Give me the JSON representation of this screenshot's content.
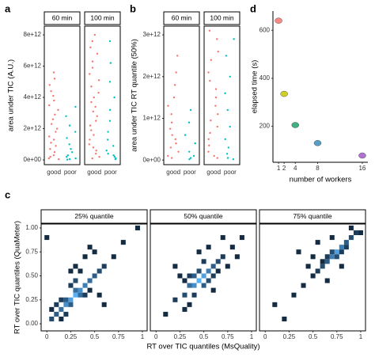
{
  "chart_data": [
    {
      "type": "strip",
      "panel": "a",
      "ylabel": "area under TIC (A.U.)",
      "ylim": [
        -300000000000.0,
        8560000000000.0
      ],
      "yticks": [
        {
          "value": 0,
          "label": "0e+00"
        },
        {
          "value": 2000000000000.0,
          "label": "2e+12"
        },
        {
          "value": 4000000000000.0,
          "label": "4e+12"
        },
        {
          "value": 6000000000000.0,
          "label": "6e+12"
        },
        {
          "value": 8000000000000.0,
          "label": "8e+12"
        }
      ],
      "facets": [
        {
          "name": "60 min",
          "series": [
            {
              "name": "good",
              "color": "#f8766d",
              "values": [
                5600000000000.0,
                5200000000000.0,
                4800000000000.0,
                4400000000000.0,
                4100000000000.0,
                3800000000000.0,
                3500000000000.0,
                3200000000000.0,
                2900000000000.0,
                2600000000000.0,
                2300000000000.0,
                2000000000000.0,
                1800000000000.0,
                1500000000000.0,
                1300000000000.0,
                1100000000000.0,
                900000000000.0,
                700000000000.0,
                500000000000.0,
                300000000000.0,
                200000000000.0,
                100000000000.0,
                50000000000.0
              ]
            },
            {
              "name": "poor",
              "color": "#00bfc4",
              "values": [
                3400000000000.0,
                2800000000000.0,
                2200000000000.0,
                1800000000000.0,
                1400000000000.0,
                1000000000000.0,
                700000000000.0,
                500000000000.0,
                300000000000.0,
                200000000000.0,
                100000000000.0,
                50000000000.0,
                20000000000.0
              ]
            }
          ]
        },
        {
          "name": "100 min",
          "series": [
            {
              "name": "good",
              "color": "#f8766d",
              "values": [
                8000000000000.0,
                7600000000000.0,
                7200000000000.0,
                6800000000000.0,
                6300000000000.0,
                5900000000000.0,
                5500000000000.0,
                5100000000000.0,
                4700000000000.0,
                4300000000000.0,
                4000000000000.0,
                3700000000000.0,
                3400000000000.0,
                3100000000000.0,
                2800000000000.0,
                2500000000000.0,
                2200000000000.0,
                1900000000000.0,
                1600000000000.0,
                1300000000000.0,
                1000000000000.0,
                800000000000.0,
                600000000000.0,
                400000000000.0,
                200000000000.0,
                100000000000.0
              ]
            },
            {
              "name": "poor",
              "color": "#00bfc4",
              "values": [
                7600000000000.0,
                6200000000000.0,
                5000000000000.0,
                4000000000000.0,
                3200000000000.0,
                2500000000000.0,
                1800000000000.0,
                1300000000000.0,
                900000000000.0,
                600000000000.0,
                400000000000.0,
                300000000000.0,
                200000000000.0,
                100000000000.0,
                50000000000.0
              ]
            }
          ]
        }
      ]
    },
    {
      "type": "strip",
      "panel": "b",
      "ylabel": "area under TIC RT quantile (50%)",
      "ylim": [
        -110000000000.0,
        3210000000000.0
      ],
      "yticks": [
        {
          "value": 0,
          "label": "0e+00"
        },
        {
          "value": 1000000000000.0,
          "label": "1e+12"
        },
        {
          "value": 2000000000000.0,
          "label": "2e+12"
        },
        {
          "value": 3000000000000.0,
          "label": "3e+12"
        }
      ],
      "facets": [
        {
          "name": "60 min",
          "series": [
            {
              "name": "good",
              "color": "#f8766d",
              "values": [
                2500000000000.0,
                2100000000000.0,
                1800000000000.0,
                1500000000000.0,
                1300000000000.0,
                1100000000000.0,
                900000000000.0,
                750000000000.0,
                600000000000.0,
                500000000000.0,
                400000000000.0,
                300000000000.0,
                200000000000.0,
                100000000000.0,
                50000000000.0
              ]
            },
            {
              "name": "poor",
              "color": "#00bfc4",
              "values": [
                1200000000000.0,
                900000000000.0,
                600000000000.0,
                400000000000.0,
                200000000000.0,
                100000000000.0,
                50000000000.0,
                20000000000.0
              ]
            }
          ]
        },
        {
          "name": "100 min",
          "series": [
            {
              "name": "good",
              "color": "#f8766d",
              "values": [
                3100000000000.0,
                2900000000000.0,
                2600000000000.0,
                2400000000000.0,
                2100000000000.0,
                1900000000000.0,
                1700000000000.0,
                1500000000000.0,
                1300000000000.0,
                1100000000000.0,
                950000000000.0,
                800000000000.0,
                650000000000.0,
                500000000000.0,
                350000000000.0,
                200000000000.0,
                100000000000.0,
                50000000000.0
              ]
            },
            {
              "name": "poor",
              "color": "#00bfc4",
              "values": [
                2900000000000.0,
                2500000000000.0,
                2000000000000.0,
                1600000000000.0,
                1200000000000.0,
                800000000000.0,
                500000000000.0,
                300000000000.0,
                150000000000.0,
                50000000000.0,
                20000000000.0
              ]
            }
          ]
        }
      ]
    },
    {
      "type": "scatter",
      "panel": "d",
      "xlabel": "number of workers",
      "ylabel": "elapsed time (s)",
      "x": [
        1,
        2,
        4,
        8,
        16
      ],
      "values": [
        640,
        335,
        205,
        130,
        78
      ],
      "colors": [
        "#f8766d",
        "#c8c800",
        "#1fa36a",
        "#3c8dbc",
        "#a05ac8"
      ],
      "xlim": [
        0,
        17
      ],
      "xticks": [
        1,
        2,
        4,
        8,
        16
      ],
      "ylim": [
        50,
        680
      ],
      "yticks": [
        200,
        400,
        600
      ]
    },
    {
      "type": "bin2d",
      "panel": "c",
      "xlabel": "RT over TIC quantiles (MsQuality)",
      "ylabel": "RT over TIC quantiles (QuaMeter)",
      "xlim": [
        -0.06,
        1.05
      ],
      "ylim": [
        -0.074,
        1.041
      ],
      "bin_width": 0.05,
      "fill_low": "#132b43",
      "fill_high": "#56b1f7",
      "xticks": [
        0,
        0.25,
        0.5,
        0.75,
        1
      ],
      "yticks": [
        {
          "value": 0,
          "label": "0.00"
        },
        0.25,
        {
          "value": 0.5,
          "label": "0.50"
        },
        0.75,
        {
          "value": 1,
          "label": "1.00"
        }
      ],
      "facets": [
        {
          "name": "25% quantile",
          "cells": [
            [
              0.05,
              0.05,
              3
            ],
            [
              0.1,
              0.1,
              4
            ],
            [
              0.15,
              0.15,
              5
            ],
            [
              0.2,
              0.2,
              7
            ],
            [
              0.25,
              0.25,
              8
            ],
            [
              0.3,
              0.3,
              9
            ],
            [
              0.35,
              0.35,
              7
            ],
            [
              0.4,
              0.4,
              6
            ],
            [
              0.45,
              0.45,
              5
            ],
            [
              0.5,
              0.5,
              4
            ],
            [
              0.55,
              0.55,
              3
            ],
            [
              0.6,
              0.6,
              2
            ],
            [
              0.7,
              0.7,
              1
            ],
            [
              0.8,
              0.85,
              1
            ],
            [
              0.95,
              1.0,
              1
            ],
            [
              0.2,
              0.25,
              4
            ],
            [
              0.25,
              0.2,
              4
            ],
            [
              0.3,
              0.35,
              5
            ],
            [
              0.35,
              0.3,
              5
            ],
            [
              0.15,
              0.25,
              2
            ],
            [
              0.3,
              0.45,
              3
            ],
            [
              0.25,
              0.4,
              2
            ],
            [
              0.4,
              0.3,
              2
            ],
            [
              0.45,
              0.35,
              1
            ],
            [
              0.1,
              0.2,
              2
            ],
            [
              0.2,
              0.1,
              2
            ],
            [
              0.35,
              0.55,
              1
            ],
            [
              0.4,
              0.7,
              1
            ],
            [
              0.5,
              0.75,
              1
            ],
            [
              0.0,
              0.9,
              1
            ],
            [
              0.6,
              0.2,
              1
            ],
            [
              0.55,
              0.3,
              1
            ],
            [
              0.3,
              0.6,
              1
            ],
            [
              0.15,
              0.05,
              1
            ],
            [
              0.05,
              0.15,
              1
            ],
            [
              0.45,
              0.8,
              1
            ],
            [
              0.25,
              0.55,
              1
            ]
          ]
        },
        {
          "name": "50% quantile",
          "cells": [
            [
              0.1,
              0.1,
              1
            ],
            [
              0.2,
              0.25,
              2
            ],
            [
              0.3,
              0.3,
              3
            ],
            [
              0.35,
              0.4,
              5
            ],
            [
              0.4,
              0.4,
              7
            ],
            [
              0.45,
              0.45,
              9
            ],
            [
              0.5,
              0.5,
              8
            ],
            [
              0.55,
              0.55,
              6
            ],
            [
              0.6,
              0.6,
              4
            ],
            [
              0.65,
              0.65,
              3
            ],
            [
              0.7,
              0.7,
              2
            ],
            [
              0.8,
              0.8,
              1
            ],
            [
              0.9,
              0.9,
              1
            ],
            [
              0.4,
              0.5,
              4
            ],
            [
              0.5,
              0.4,
              4
            ],
            [
              0.45,
              0.55,
              3
            ],
            [
              0.55,
              0.45,
              3
            ],
            [
              0.35,
              0.5,
              2
            ],
            [
              0.6,
              0.5,
              2
            ],
            [
              0.3,
              0.45,
              1
            ],
            [
              0.5,
              0.65,
              2
            ],
            [
              0.65,
              0.55,
              1
            ],
            [
              0.4,
              0.3,
              2
            ],
            [
              0.25,
              0.5,
              1
            ],
            [
              0.45,
              0.75,
              1
            ],
            [
              0.55,
              0.8,
              1
            ],
            [
              0.7,
              0.9,
              1
            ],
            [
              0.35,
              0.2,
              1
            ],
            [
              0.6,
              0.35,
              1
            ],
            [
              0.75,
              0.6,
              1
            ],
            [
              0.2,
              0.6,
              1
            ],
            [
              0.3,
              0.15,
              1
            ],
            [
              0.85,
              0.7,
              1
            ]
          ]
        },
        {
          "name": "75% quantile",
          "cells": [
            [
              0.5,
              0.5,
              1
            ],
            [
              0.55,
              0.55,
              2
            ],
            [
              0.6,
              0.6,
              3
            ],
            [
              0.65,
              0.65,
              4
            ],
            [
              0.7,
              0.7,
              6
            ],
            [
              0.75,
              0.75,
              8
            ],
            [
              0.8,
              0.8,
              6
            ],
            [
              0.85,
              0.85,
              4
            ],
            [
              0.9,
              0.9,
              3
            ],
            [
              0.95,
              0.95,
              2
            ],
            [
              0.7,
              0.75,
              3
            ],
            [
              0.75,
              0.7,
              3
            ],
            [
              0.8,
              0.75,
              2
            ],
            [
              0.65,
              0.7,
              2
            ],
            [
              0.6,
              0.65,
              1
            ],
            [
              0.85,
              0.8,
              2
            ],
            [
              0.4,
              0.4,
              1
            ],
            [
              0.3,
              0.3,
              1
            ],
            [
              0.1,
              0.2,
              1
            ],
            [
              0.2,
              0.05,
              1
            ],
            [
              0.5,
              0.7,
              1
            ],
            [
              0.55,
              0.85,
              1
            ],
            [
              0.9,
              1.0,
              1
            ],
            [
              1.0,
              0.95,
              1
            ],
            [
              0.65,
              0.45,
              1
            ],
            [
              0.45,
              0.6,
              1
            ],
            [
              0.7,
              0.9,
              1
            ],
            [
              0.35,
              0.75,
              1
            ],
            [
              0.8,
              0.6,
              1
            ]
          ]
        }
      ]
    }
  ]
}
